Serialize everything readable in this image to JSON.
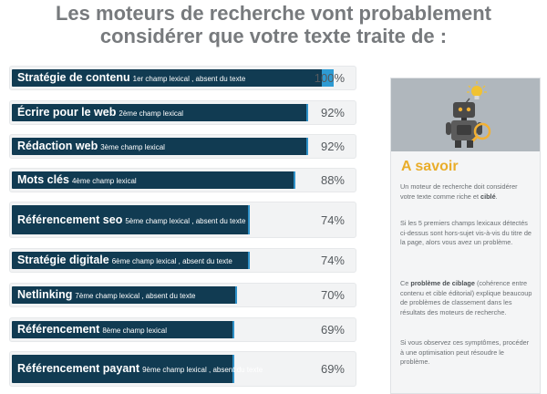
{
  "title": {
    "line1": "Les moteurs de recherche vont probablement",
    "line2": "considérer que votre texte traite de :"
  },
  "rows": [
    {
      "keyword": "Stratégie de contenu",
      "detail": "1er champ lexical , absent du texte",
      "percent": "100%",
      "value": 100
    },
    {
      "keyword": "Écrire pour le web",
      "detail": "2ème champ lexical",
      "percent": "92%",
      "value": 92
    },
    {
      "keyword": "Rédaction web",
      "detail": "3ème champ lexical",
      "percent": "92%",
      "value": 92
    },
    {
      "keyword": "Mots clés",
      "detail": "4ème champ lexical",
      "percent": "88%",
      "value": 88
    },
    {
      "keyword": "Référencement seo",
      "detail": "5ème champ lexical , absent du texte",
      "percent": "74%",
      "value": 74
    },
    {
      "keyword": "Stratégie digitale",
      "detail": "6ème champ lexical , absent du texte",
      "percent": "74%",
      "value": 74
    },
    {
      "keyword": "Netlinking",
      "detail": "7ème champ lexical , absent du texte",
      "percent": "70%",
      "value": 70
    },
    {
      "keyword": "Référencement",
      "detail": "8ème champ lexical",
      "percent": "69%",
      "value": 69
    },
    {
      "keyword": "Référencement payant",
      "detail": "9ème champ lexical , absent du texte",
      "percent": "69%",
      "value": 69
    }
  ],
  "panel": {
    "heading": "A savoir",
    "p1_a": "Un moteur de recherche doit considérer votre texte comme riche et ",
    "p1_b": "ciblé",
    "p1_c": ".",
    "p2": "Si les 5 premiers champs lexicaux détectés ci-dessus sont hors-sujet vis-à-vis du titre de la page, alors vous avez un problème.",
    "p3_a": "Ce ",
    "p3_b": "problème de ciblage",
    "p3_c": " (cohérence entre contenu et cible éditorial) explique beaucoup de problèmes de classement dans les résultats des moteurs de recherche.",
    "p4": "Si vous observez ces symptômes, procéder à une optimisation peut résoudre le problème."
  },
  "colors": {
    "bar": "#113b52",
    "bar_tip": "#2e91c9",
    "accent": "#e9ad2a",
    "title": "#777a7d"
  },
  "icons": [
    "robot-icon",
    "light-bulb-icon",
    "magnifier-icon"
  ]
}
